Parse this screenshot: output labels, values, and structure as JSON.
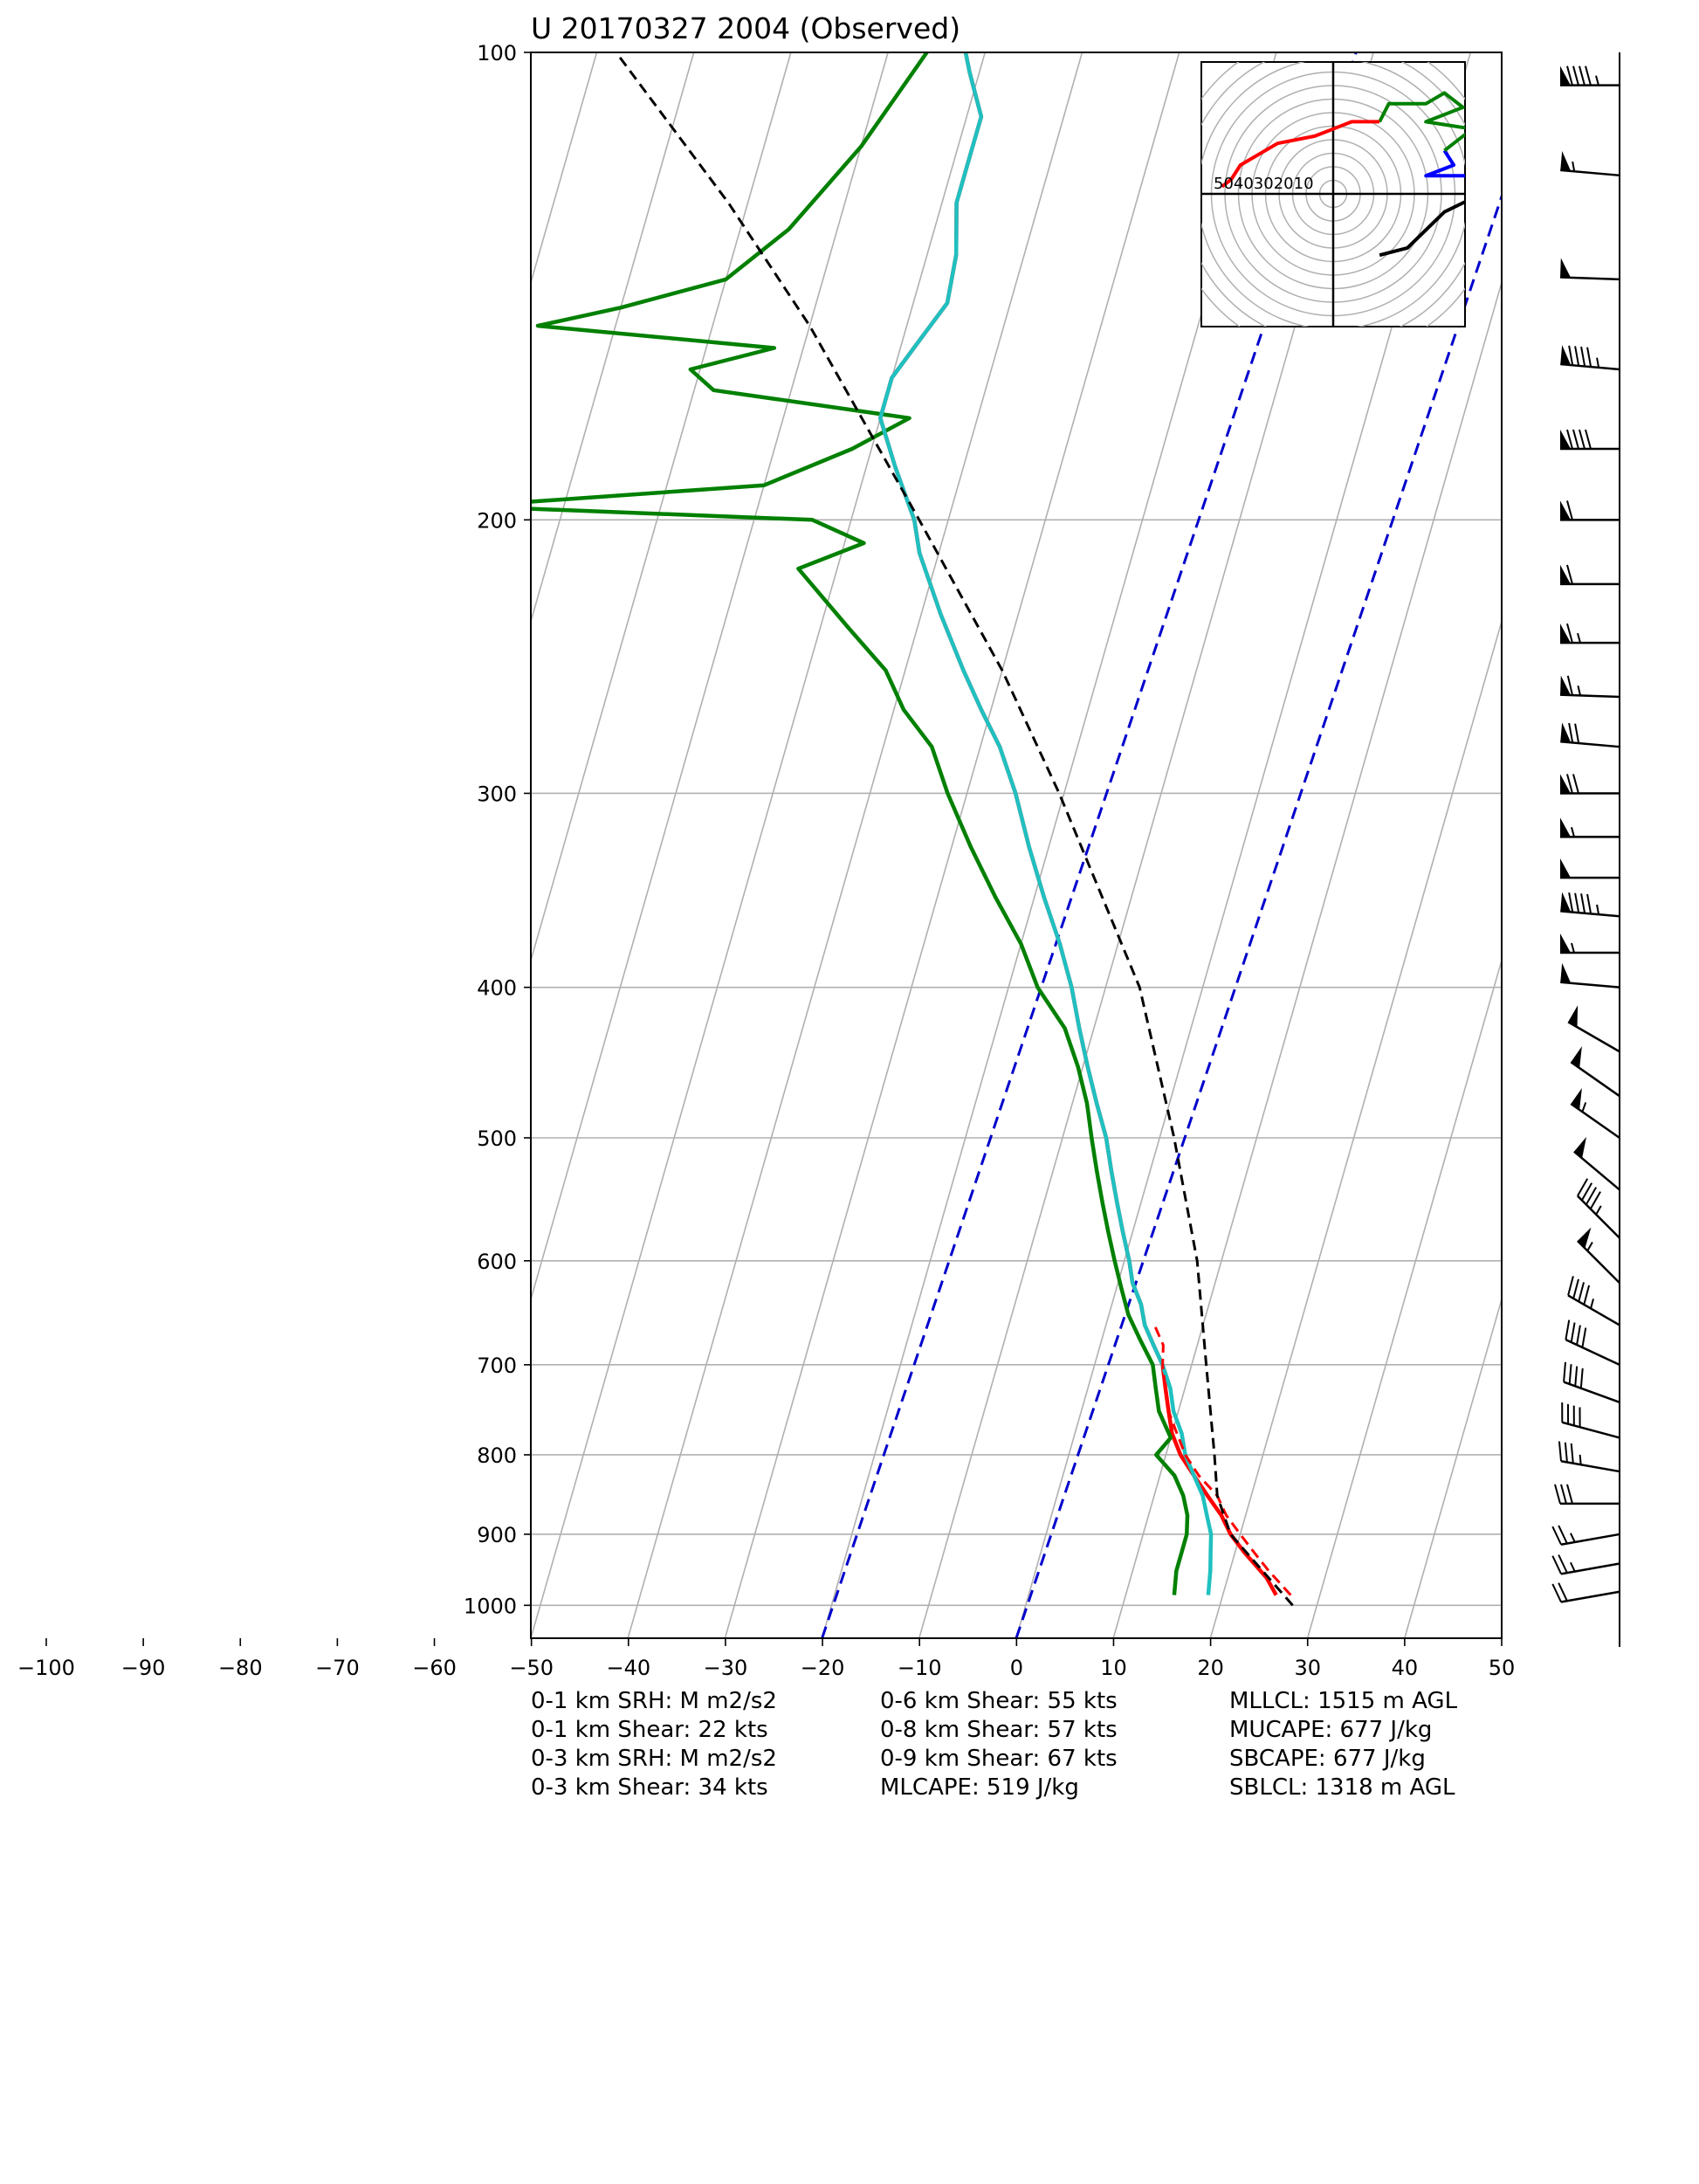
{
  "chart_data": {
    "type": "skew-t",
    "title": "U 20170327 2004   (Observed)",
    "x_axis": {
      "range": [
        -100,
        50
      ],
      "skewed_range": [
        -50,
        50
      ],
      "ticks": [
        -100,
        -90,
        -80,
        -70,
        -60,
        -50,
        -40,
        -30,
        -20,
        -10,
        0,
        10,
        20,
        30,
        40,
        50
      ],
      "tick_labels": [
        "−100",
        "−90",
        "−80",
        "−70",
        "−60",
        "−50",
        "−40",
        "−30",
        "−20",
        "−10",
        "0",
        "10",
        "20",
        "30",
        "40",
        "50"
      ]
    },
    "y_axis": {
      "scale": "log",
      "range": [
        1050,
        100
      ],
      "ticks": [
        100,
        200,
        300,
        400,
        500,
        600,
        700,
        800,
        900,
        1000
      ],
      "tick_labels": [
        "100",
        "200",
        "300",
        "400",
        "500",
        "600",
        "700",
        "800",
        "900",
        "1000"
      ]
    },
    "grid": true,
    "series": [
      {
        "role": "temperature",
        "color": "#ff0000",
        "style": "solid",
        "points": [
          [
            985,
            25.5
          ],
          [
            960,
            24
          ],
          [
            925,
            21
          ],
          [
            900,
            19
          ],
          [
            875,
            17.5
          ],
          [
            850,
            15.5
          ],
          [
            825,
            13.5
          ],
          [
            800,
            11.5
          ],
          [
            775,
            10
          ],
          [
            750,
            9
          ],
          [
            725,
            8
          ],
          [
            700,
            7
          ],
          [
            680,
            5.5
          ],
          [
            660,
            4
          ],
          [
            640,
            3
          ],
          [
            620,
            1.5
          ],
          [
            600,
            0.5
          ],
          [
            575,
            -1
          ],
          [
            550,
            -2.5
          ],
          [
            525,
            -4
          ],
          [
            500,
            -5.5
          ],
          [
            475,
            -7.5
          ],
          [
            450,
            -9.5
          ],
          [
            425,
            -11.5
          ],
          [
            400,
            -13.5
          ],
          [
            375,
            -16
          ],
          [
            350,
            -19
          ],
          [
            325,
            -22
          ],
          [
            300,
            -25
          ],
          [
            280,
            -28
          ],
          [
            265,
            -31
          ],
          [
            250,
            -34
          ],
          [
            230,
            -38
          ],
          [
            210,
            -42
          ],
          [
            200,
            -43.5
          ],
          [
            185,
            -47
          ],
          [
            172,
            -50
          ],
          [
            162,
            -50
          ],
          [
            152,
            -48
          ],
          [
            145,
            -46.5
          ],
          [
            135,
            -47
          ],
          [
            125,
            -48.5
          ],
          [
            118,
            -48.5
          ],
          [
            110,
            -48.5
          ],
          [
            103,
            -51
          ],
          [
            100,
            -52
          ]
        ]
      },
      {
        "role": "dewpoint",
        "color": "#008000",
        "style": "solid",
        "points": [
          [
            985,
            15
          ],
          [
            950,
            14.5
          ],
          [
            925,
            14.5
          ],
          [
            900,
            14.5
          ],
          [
            875,
            14
          ],
          [
            850,
            13
          ],
          [
            825,
            11.5
          ],
          [
            800,
            9
          ],
          [
            780,
            10
          ],
          [
            750,
            8
          ],
          [
            725,
            7
          ],
          [
            700,
            6
          ],
          [
            675,
            4
          ],
          [
            650,
            2
          ],
          [
            625,
            0.5
          ],
          [
            600,
            -1
          ],
          [
            575,
            -2.5
          ],
          [
            550,
            -4
          ],
          [
            525,
            -5.5
          ],
          [
            500,
            -7
          ],
          [
            475,
            -8.5
          ],
          [
            450,
            -10.5
          ],
          [
            425,
            -13
          ],
          [
            400,
            -17
          ],
          [
            375,
            -20
          ],
          [
            350,
            -24
          ],
          [
            325,
            -28
          ],
          [
            300,
            -32
          ],
          [
            280,
            -35
          ],
          [
            265,
            -39
          ],
          [
            250,
            -42
          ],
          [
            235,
            -47
          ],
          [
            215,
            -54
          ],
          [
            207,
            -48
          ],
          [
            200,
            -54
          ],
          [
            196,
            -90
          ],
          [
            190,
            -60
          ],
          [
            180,
            -52
          ],
          [
            172,
            -47
          ],
          [
            165,
            -68
          ],
          [
            160,
            -71
          ],
          [
            155,
            -63
          ],
          [
            150,
            -88
          ],
          [
            146,
            -80
          ],
          [
            140,
            -70
          ],
          [
            130,
            -65
          ],
          [
            115,
            -60
          ],
          [
            100,
            -56
          ]
        ]
      },
      {
        "role": "virtual-temperature",
        "color": "#20c0c0",
        "style": "solid",
        "points": [
          [
            985,
            18.5
          ],
          [
            950,
            18
          ],
          [
            925,
            17.5
          ],
          [
            900,
            17
          ],
          [
            875,
            16
          ],
          [
            850,
            15
          ],
          [
            825,
            13.5
          ],
          [
            800,
            12
          ],
          [
            775,
            11
          ],
          [
            750,
            9.5
          ],
          [
            725,
            8.5
          ],
          [
            700,
            7
          ],
          [
            680,
            5.5
          ],
          [
            660,
            4
          ],
          [
            640,
            3
          ],
          [
            620,
            1.5
          ],
          [
            600,
            0.5
          ],
          [
            575,
            -1
          ],
          [
            550,
            -2.5
          ],
          [
            525,
            -4
          ],
          [
            500,
            -5.5
          ],
          [
            475,
            -7.5
          ],
          [
            450,
            -9.5
          ],
          [
            425,
            -11.5
          ],
          [
            400,
            -13.5
          ],
          [
            375,
            -16
          ],
          [
            350,
            -19
          ],
          [
            325,
            -22
          ],
          [
            300,
            -25
          ],
          [
            280,
            -28
          ],
          [
            265,
            -31
          ],
          [
            250,
            -34
          ],
          [
            230,
            -38
          ],
          [
            210,
            -42
          ],
          [
            200,
            -43.5
          ],
          [
            185,
            -47
          ],
          [
            172,
            -50
          ],
          [
            162,
            -50
          ],
          [
            152,
            -48
          ],
          [
            145,
            -46.5
          ],
          [
            135,
            -47
          ],
          [
            125,
            -48.5
          ],
          [
            118,
            -48.5
          ],
          [
            110,
            -48.5
          ],
          [
            103,
            -51
          ],
          [
            100,
            -52
          ]
        ]
      },
      {
        "role": "parcel-virtual-temperature",
        "color": "#ff0000",
        "style": "dashed",
        "points": [
          [
            985,
            27
          ],
          [
            950,
            24
          ],
          [
            925,
            22
          ],
          [
            900,
            20
          ],
          [
            875,
            18
          ],
          [
            850,
            16.5
          ],
          [
            825,
            14
          ],
          [
            800,
            12
          ],
          [
            775,
            10.5
          ],
          [
            750,
            9
          ],
          [
            725,
            8
          ],
          [
            700,
            7
          ],
          [
            680,
            6.5
          ],
          [
            660,
            5
          ]
        ]
      },
      {
        "role": "parcel-temperature",
        "color": "#000000",
        "style": "dashed",
        "points": [
          [
            1000,
            27.5
          ],
          [
            900,
            19
          ],
          [
            850,
            16.5
          ],
          [
            800,
            15
          ],
          [
            700,
            11.5
          ],
          [
            600,
            7.5
          ],
          [
            500,
            1.5
          ],
          [
            400,
            -6.5
          ],
          [
            300,
            -20.5
          ],
          [
            250,
            -30
          ],
          [
            200,
            -43
          ],
          [
            150,
            -60
          ],
          [
            125,
            -72
          ],
          [
            100,
            -88
          ]
        ]
      },
      {
        "role": "isotherms-or-guides",
        "color": "#0000cc",
        "style": "dashed",
        "lines": [
          {
            "bottom_temp": -20,
            "bottom_p": 1050,
            "top_temp": 35,
            "top_p": 100
          },
          {
            "bottom_temp": 0,
            "bottom_p": 1050,
            "top_temp": 55,
            "top_p": 100
          }
        ]
      }
    ],
    "wind_barbs": [
      {
        "p": 105,
        "speed": 95,
        "dir": 270
      },
      {
        "p": 120,
        "speed": 55,
        "dir": 275
      },
      {
        "p": 140,
        "speed": 50,
        "dir": 272
      },
      {
        "p": 160,
        "speed": 95,
        "dir": 275
      },
      {
        "p": 180,
        "speed": 90,
        "dir": 270
      },
      {
        "p": 200,
        "speed": 60,
        "dir": 270
      },
      {
        "p": 220,
        "speed": 60,
        "dir": 270
      },
      {
        "p": 240,
        "speed": 65,
        "dir": 270
      },
      {
        "p": 260,
        "speed": 65,
        "dir": 272
      },
      {
        "p": 280,
        "speed": 70,
        "dir": 275
      },
      {
        "p": 300,
        "speed": 70,
        "dir": 270
      },
      {
        "p": 320,
        "speed": 55,
        "dir": 270
      },
      {
        "p": 340,
        "speed": 50,
        "dir": 270
      },
      {
        "p": 360,
        "speed": 95,
        "dir": 275
      },
      {
        "p": 380,
        "speed": 55,
        "dir": 270
      },
      {
        "p": 400,
        "speed": 50,
        "dir": 275
      },
      {
        "p": 440,
        "speed": 50,
        "dir": 300
      },
      {
        "p": 470,
        "speed": 50,
        "dir": 305
      },
      {
        "p": 500,
        "speed": 55,
        "dir": 305
      },
      {
        "p": 540,
        "speed": 50,
        "dir": 310
      },
      {
        "p": 580,
        "speed": 45,
        "dir": 315
      },
      {
        "p": 620,
        "speed": 55,
        "dir": 315
      },
      {
        "p": 660,
        "speed": 45,
        "dir": 300
      },
      {
        "p": 700,
        "speed": 40,
        "dir": 295
      },
      {
        "p": 740,
        "speed": 40,
        "dir": 290
      },
      {
        "p": 780,
        "speed": 40,
        "dir": 285
      },
      {
        "p": 820,
        "speed": 35,
        "dir": 280
      },
      {
        "p": 860,
        "speed": 30,
        "dir": 270
      },
      {
        "p": 900,
        "speed": 25,
        "dir": 260
      },
      {
        "p": 940,
        "speed": 25,
        "dir": 260
      },
      {
        "p": 980,
        "speed": 20,
        "dir": 260
      }
    ],
    "hodograph": {
      "ring_labels": [
        "50",
        "40",
        "30",
        "20",
        "10"
      ],
      "segments": [
        {
          "color": "#000000",
          "points": [
            [
              15,
              -5
            ],
            [
              16,
              0
            ],
            [
              12,
              -5
            ],
            [
              10,
              -10
            ],
            [
              8,
              -15
            ],
            [
              5,
              -17
            ]
          ]
        },
        {
          "color": "#0000ff",
          "points": [
            [
              15,
              0
            ],
            [
              18,
              -1
            ],
            [
              17,
              -4
            ],
            [
              18,
              2
            ],
            [
              15,
              5
            ],
            [
              10,
              5
            ],
            [
              13,
              8
            ],
            [
              12,
              12
            ]
          ]
        },
        {
          "color": "#008000",
          "points": [
            [
              12,
              12
            ],
            [
              15,
              18
            ],
            [
              10,
              20
            ],
            [
              14,
              24
            ],
            [
              12,
              28
            ],
            [
              10,
              25
            ],
            [
              6,
              25
            ],
            [
              5,
              20
            ]
          ]
        },
        {
          "color": "#ff0000",
          "points": [
            [
              5,
              20
            ],
            [
              2,
              20
            ],
            [
              0,
              18
            ],
            [
              -2,
              16
            ],
            [
              -6,
              14
            ],
            [
              -10,
              8
            ],
            [
              -11,
              4
            ],
            [
              -12,
              2
            ]
          ]
        }
      ]
    },
    "stats": [
      [
        "0-1 km SRH: M m2/s2",
        "0-1 km Shear: 22 kts",
        "0-3 km SRH: M m2/s2",
        "0-3 km Shear: 34 kts"
      ],
      [
        "0-6 km Shear: 55 kts",
        "0-8 km Shear: 57 kts",
        "0-9 km Shear: 67 kts",
        "MLCAPE: 519 J/kg"
      ],
      [
        "MLLCL: 1515 m AGL",
        "MUCAPE: 677 J/kg",
        "SBCAPE: 677 J/kg",
        "SBLCL: 1318 m AGL"
      ]
    ]
  }
}
